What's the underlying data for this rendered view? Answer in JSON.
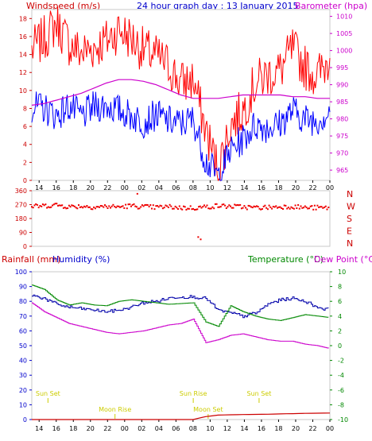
{
  "chart_data": [
    {
      "type": "line",
      "title": "24 hour graph day : 13 January 2015",
      "ylabel": "Windspeed (m/s)",
      "y2label": "Barometer (hpa)",
      "ylim": [
        0,
        19
      ],
      "y2lim": [
        962,
        1012
      ],
      "yticks": [
        "0",
        "2",
        "4",
        "6",
        "8",
        "10",
        "12",
        "14",
        "16",
        "18"
      ],
      "y2ticks": [
        "965",
        "970",
        "975",
        "980",
        "985",
        "990",
        "995",
        "1000",
        "1005",
        "1010"
      ],
      "x_hour_labels": [
        "14",
        "16",
        "18",
        "20",
        "22",
        "00",
        "02",
        "04",
        "06",
        "08",
        "10",
        "12",
        "14",
        "16",
        "18",
        "20",
        "22",
        "00"
      ],
      "grid": false,
      "series": [
        {
          "role": "gust",
          "color": "#ff0000",
          "x": [
            0,
            1,
            2,
            3,
            4,
            5,
            6,
            7,
            8,
            9,
            10,
            11,
            12,
            13,
            14,
            15,
            16,
            17,
            18,
            19,
            20,
            21,
            22,
            23,
            24
          ],
          "y": [
            14.5,
            15.8,
            17.5,
            15.2,
            14.2,
            14.8,
            15.5,
            16.8,
            15.8,
            14.5,
            13.8,
            12.8,
            10.8,
            11.2,
            5.6,
            1.2,
            6.2,
            7.8,
            10.8,
            11.8,
            12.2,
            14.6,
            12.6,
            11.6,
            13.6
          ]
        },
        {
          "role": "average",
          "color": "#0000ff",
          "x": [
            0,
            1,
            2,
            3,
            4,
            5,
            6,
            7,
            8,
            9,
            10,
            11,
            12,
            13,
            14,
            15,
            16,
            17,
            18,
            19,
            20,
            21,
            22,
            23,
            24
          ],
          "y": [
            8.2,
            8.0,
            7.2,
            8.3,
            7.1,
            8.2,
            8.3,
            7.8,
            7.2,
            6.5,
            7.3,
            6.6,
            6.3,
            6.8,
            2.2,
            0.4,
            3.3,
            4.6,
            6.2,
            5.9,
            6.3,
            7.8,
            6.8,
            6.7,
            7.6
          ]
        },
        {
          "role": "barometer",
          "color": "#cc00cc",
          "axis": "right",
          "x": [
            0,
            1,
            2,
            3,
            4,
            5,
            6,
            7,
            8,
            9,
            10,
            11,
            12,
            13,
            14,
            15,
            16,
            17,
            18,
            19,
            20,
            21,
            22,
            23,
            24
          ],
          "y": [
            984,
            984.5,
            985.5,
            986.5,
            987.5,
            989,
            990.5,
            991.5,
            991.5,
            991,
            990,
            988.5,
            987,
            986,
            986,
            986,
            986.5,
            987,
            987,
            987,
            987,
            986.5,
            986.5,
            986,
            986
          ]
        }
      ]
    },
    {
      "type": "scatter",
      "y_left_ticks": [
        "360",
        "270",
        "180",
        "90",
        "0"
      ],
      "y_right_labels": [
        "N",
        "W",
        "S",
        "E",
        "N"
      ],
      "ylim": [
        0,
        360
      ],
      "series": [
        {
          "role": "wind-direction",
          "color": "#ee0000",
          "x": [
            0,
            1,
            2,
            3,
            4,
            5,
            6,
            7,
            8,
            9,
            10,
            11,
            12,
            13,
            14,
            15,
            16,
            17,
            18,
            19,
            20,
            21,
            22,
            23,
            24
          ],
          "y": [
            258,
            262,
            268,
            256,
            260,
            254,
            258,
            255,
            262,
            256,
            252,
            256,
            250,
            248,
            255,
            262,
            258,
            255,
            250,
            252,
            256,
            258,
            250,
            250,
            248
          ]
        }
      ]
    },
    {
      "type": "line",
      "ylabel": "Rainfall (mm)",
      "ylabel2": "Humidity (%)",
      "y2label": "Temperature (°C)",
      "y2label2": "Dew Point (°C)",
      "ylim": [
        0,
        100
      ],
      "y2lim": [
        -10,
        10
      ],
      "yticks": [
        "0",
        "10",
        "20",
        "30",
        "40",
        "50",
        "60",
        "70",
        "80",
        "90",
        "100"
      ],
      "y2ticks": [
        "-10",
        "-8",
        "-6",
        "-4",
        "-2",
        "0",
        "2",
        "4",
        "6",
        "8",
        "10"
      ],
      "x_hour_labels": [
        "14",
        "16",
        "18",
        "20",
        "22",
        "00",
        "02",
        "04",
        "06",
        "08",
        "10",
        "12",
        "14",
        "16",
        "18",
        "20",
        "22",
        "00"
      ],
      "series": [
        {
          "role": "humidity",
          "color": "#0000aa",
          "x": [
            0,
            1,
            2,
            3,
            4,
            5,
            6,
            7,
            8,
            9,
            10,
            11,
            12,
            13,
            14,
            15,
            16,
            17,
            18,
            19,
            20,
            21,
            22,
            23,
            24
          ],
          "y": [
            84,
            82,
            78,
            76,
            75,
            74,
            73,
            74,
            76,
            79,
            80,
            82,
            83,
            83,
            82,
            74,
            72,
            70,
            72,
            78,
            81,
            82,
            80,
            76,
            74
          ]
        },
        {
          "role": "temperature",
          "color": "#008800",
          "axis": "right",
          "x": [
            0,
            1,
            2,
            3,
            4,
            5,
            6,
            7,
            8,
            9,
            10,
            11,
            12,
            13,
            14,
            15,
            16,
            17,
            18,
            19,
            20,
            21,
            22,
            23,
            24
          ],
          "y": [
            8.2,
            7.6,
            6.2,
            5.5,
            5.8,
            5.5,
            5.4,
            6.0,
            6.2,
            6.0,
            5.8,
            5.6,
            5.7,
            5.8,
            3.2,
            2.6,
            5.4,
            4.6,
            4.0,
            3.6,
            3.4,
            3.8,
            4.2,
            4.0,
            3.8
          ]
        },
        {
          "role": "dew-point",
          "color": "#cc00cc",
          "axis": "right",
          "x": [
            0,
            1,
            2,
            3,
            4,
            5,
            6,
            7,
            8,
            9,
            10,
            11,
            12,
            13,
            14,
            15,
            16,
            17,
            18,
            19,
            20,
            21,
            22,
            23,
            24
          ],
          "y": [
            5.8,
            4.6,
            3.8,
            3.0,
            2.6,
            2.2,
            1.8,
            1.6,
            1.8,
            2.0,
            2.4,
            2.8,
            3.0,
            3.6,
            0.4,
            0.8,
            1.4,
            1.6,
            1.2,
            0.8,
            0.6,
            0.6,
            0.2,
            0.0,
            -0.4
          ]
        },
        {
          "role": "rainfall",
          "color": "#cc0000",
          "x": [
            0,
            1,
            2,
            3,
            4,
            5,
            6,
            7,
            8,
            9,
            10,
            11,
            12,
            13,
            14,
            15,
            16,
            17,
            18,
            19,
            20,
            21,
            22,
            23,
            24
          ],
          "y": [
            0,
            0,
            0,
            0,
            0,
            0,
            0,
            0,
            0,
            0,
            0,
            0,
            0,
            0,
            2,
            3,
            3.2,
            3.4,
            3.5,
            3.6,
            3.8,
            4.0,
            4.2,
            4.3,
            4.4
          ]
        }
      ],
      "annotations": [
        {
          "label": "Sun Set",
          "x": 1.3,
          "row": 0
        },
        {
          "label": "Moon Rise",
          "x": 6.7,
          "row": 1
        },
        {
          "label": "Sun Rise",
          "x": 13.0,
          "row": 0
        },
        {
          "label": "Moon Set",
          "x": 14.2,
          "row": 1
        },
        {
          "label": "Sun Set",
          "x": 18.3,
          "row": 0
        }
      ]
    }
  ],
  "colors": {
    "windspeed_label": "#cc0000",
    "title": "#0000cc",
    "barometer_label": "#cc00cc",
    "direction_letters": "#cc0000",
    "rainfall_label": "#cc0000",
    "humidity_label": "#0000cc",
    "temperature_label": "#008800",
    "dewpoint_label": "#cc00cc",
    "annotation": "#cccc00"
  }
}
